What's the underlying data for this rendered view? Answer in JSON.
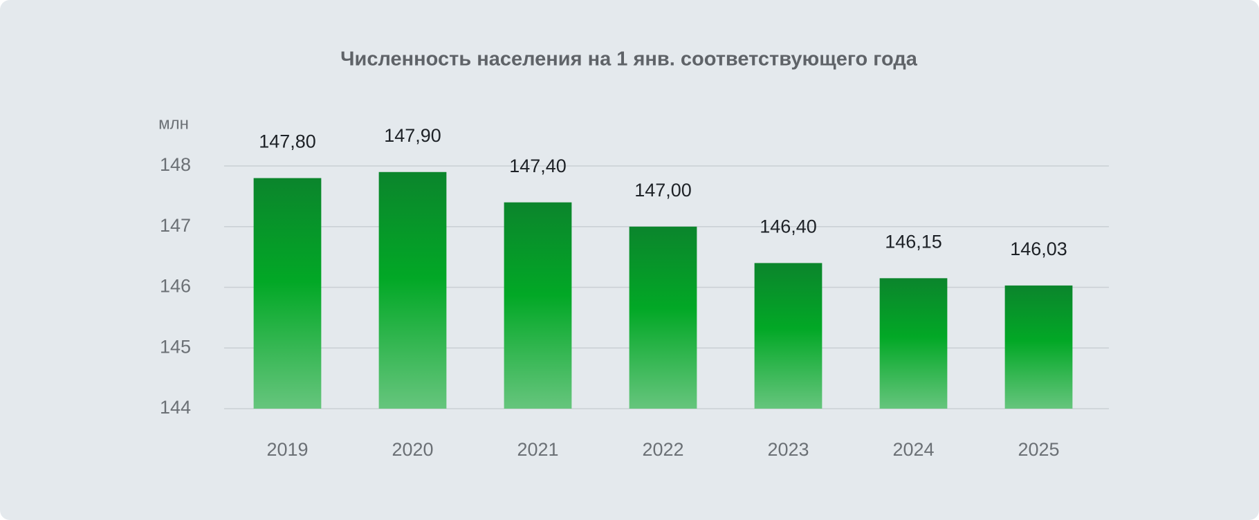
{
  "chart_data": {
    "type": "bar",
    "title": "Численность населения на 1 янв. соответствующего года",
    "y_label": "млн",
    "categories": [
      "2019",
      "2020",
      "2021",
      "2022",
      "2023",
      "2024",
      "2025"
    ],
    "values": [
      147.8,
      147.9,
      147.4,
      147.0,
      146.4,
      146.15,
      146.03
    ],
    "value_labels": [
      "147,80",
      "147,90",
      "147,40",
      "147,00",
      "146,40",
      "146,15",
      "146,03"
    ],
    "color": "#02a826",
    "ylim": [
      144,
      148
    ],
    "yticks": [
      144,
      145,
      146,
      147,
      148
    ],
    "grid": true
  }
}
